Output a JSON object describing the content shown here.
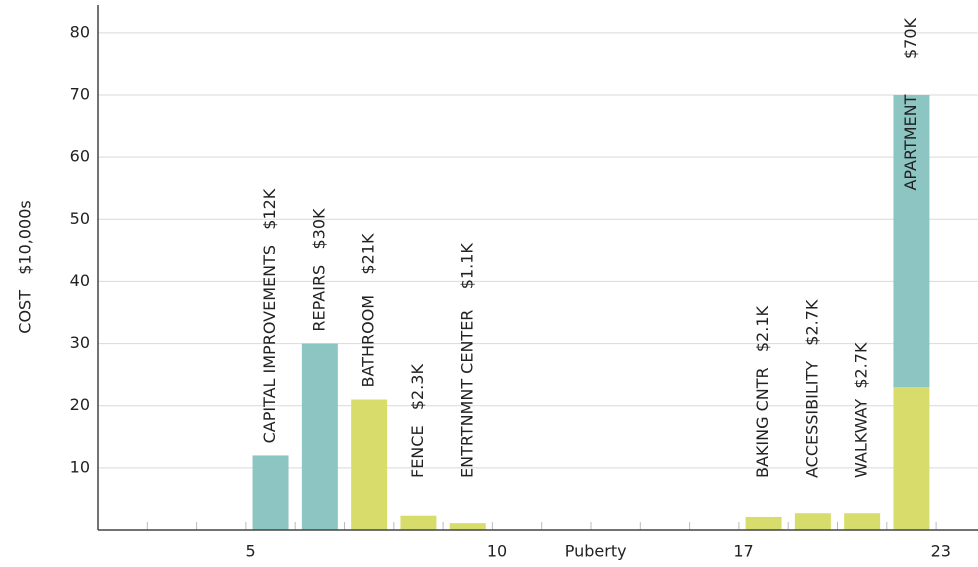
{
  "chart_data": {
    "type": "stacked_bar",
    "ylabel": "COST   $10,000s",
    "categories": [
      null,
      null,
      null,
      "5",
      null,
      null,
      null,
      null,
      "10",
      null,
      "Puberty",
      null,
      null,
      "17",
      null,
      null,
      null,
      "23"
    ],
    "series": [
      {
        "color": "#d8dc6a",
        "values": [
          0,
          0,
          0,
          0,
          0,
          21,
          2.3,
          1.1,
          0,
          0,
          0,
          0,
          0,
          2.1,
          2.7,
          2.7,
          23,
          0
        ]
      },
      {
        "color": "#8cc5c2",
        "values": [
          0,
          0,
          0,
          12,
          30,
          0,
          0,
          0,
          0,
          0,
          0,
          0,
          0,
          0,
          0,
          0,
          47,
          0
        ]
      }
    ],
    "annotations": [
      null,
      null,
      null,
      "CAPITAL IMPROVEMENTS   $12K",
      "REPAIRS   $30K",
      "BATHROOM    $21K",
      "FENCE   $2.3K",
      "ENTRTNMNT CENTER    $1.1K",
      null,
      null,
      null,
      null,
      null,
      "BAKING CNTR   $2.1K",
      "ACCESSIBILITY   $2.7K",
      "WALKWAY  $2.7K",
      "APARTMENT       $70K",
      null
    ],
    "ylim": [
      0,
      84
    ],
    "yticks": [
      10,
      20,
      30,
      40,
      50,
      60,
      70,
      80
    ],
    "grid": true
  }
}
